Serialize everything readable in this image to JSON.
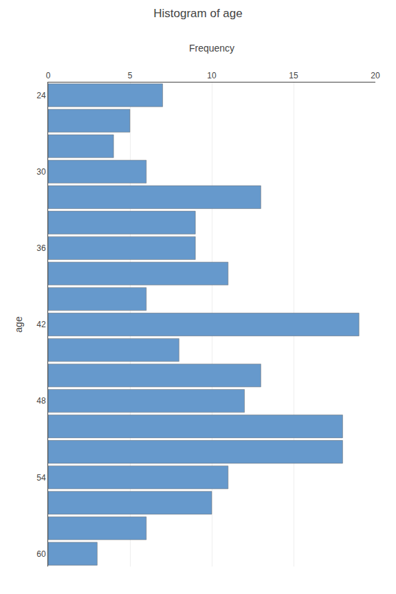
{
  "chart_data": {
    "type": "bar",
    "orientation": "horizontal",
    "title": "Histogram of age",
    "xlabel": "Frequency",
    "ylabel": "age",
    "categories": [
      "24",
      null,
      null,
      "30",
      null,
      null,
      "36",
      null,
      null,
      "42",
      null,
      null,
      "48",
      null,
      null,
      "54",
      null,
      null,
      "60"
    ],
    "values": [
      7,
      5,
      4,
      6,
      13,
      9,
      9,
      11,
      6,
      19,
      8,
      13,
      12,
      18,
      18,
      11,
      10,
      6,
      3
    ],
    "color": "#6699cc",
    "xlim": [
      0,
      20
    ],
    "xticks": [
      0,
      5,
      10,
      15,
      20
    ],
    "grid": true
  }
}
